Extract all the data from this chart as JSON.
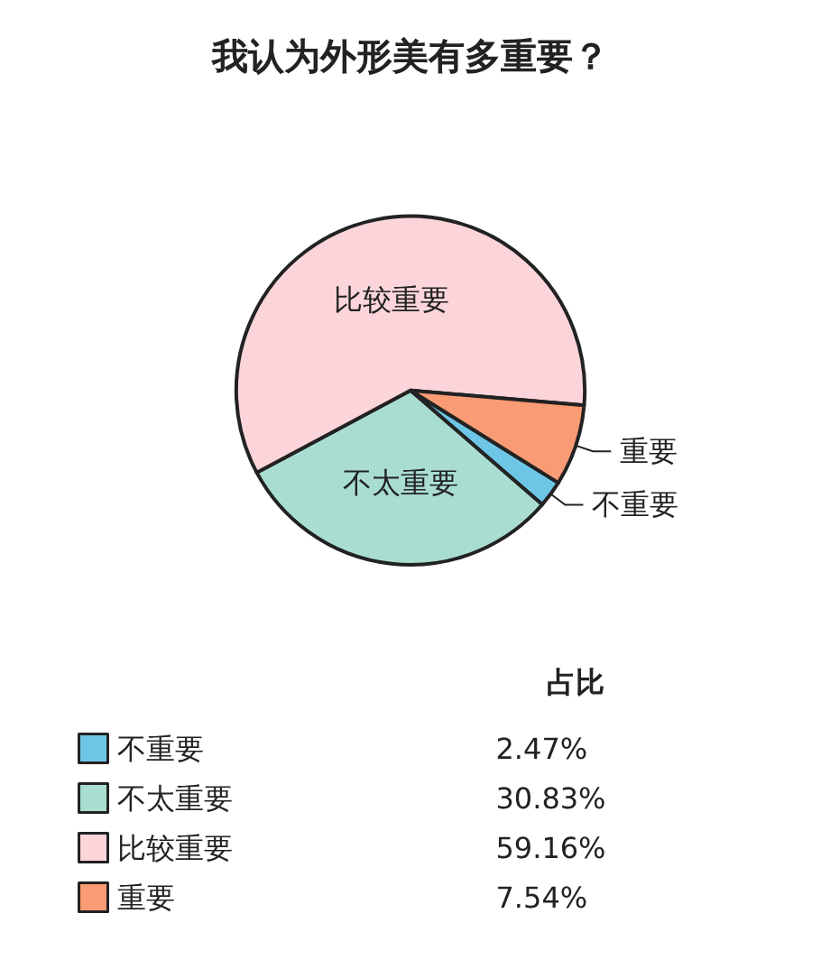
{
  "chart_data": {
    "type": "pie",
    "title": "我认为外形美有多重要？",
    "categories": [
      "不重要",
      "不太重要",
      "比较重要",
      "重要"
    ],
    "values": [
      2.47,
      30.83,
      59.16,
      7.54
    ],
    "colors": [
      "#6ec6e6",
      "#a9ddd1",
      "#fbd5da",
      "#f99b74"
    ],
    "value_labels": [
      "2.47%",
      "30.83%",
      "59.16%",
      "7.54%"
    ],
    "legend_title": "占比",
    "legend": "bottom left"
  }
}
